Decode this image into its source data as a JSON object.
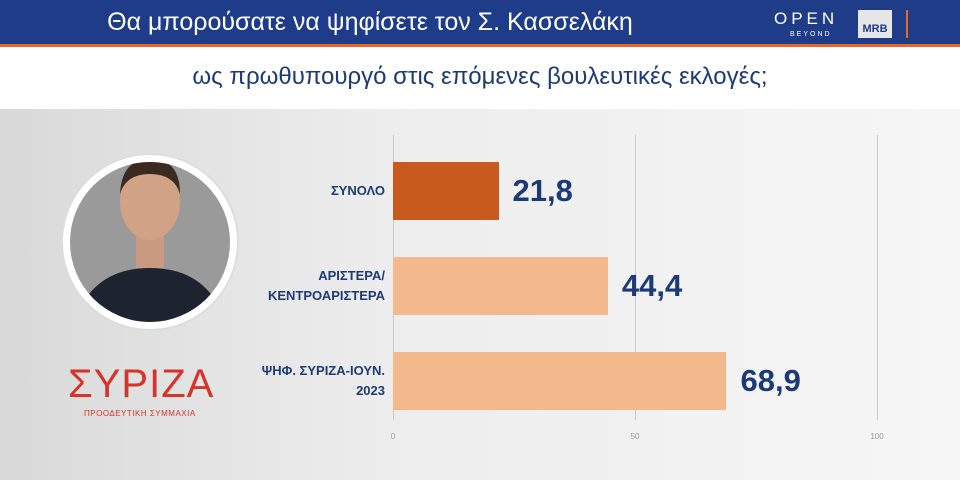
{
  "header": {
    "logo_open": "OPEN",
    "logo_beyond": "BEYOND",
    "logo_mrb": "MRB"
  },
  "party": {
    "name": "ΣΥΡΙΖΑ",
    "tagline": "ΠΡΟΟΔΕΥΤΙΚΗ ΣΥΜΜΑΧΙΑ"
  },
  "chart_data": {
    "type": "bar",
    "orientation": "horizontal",
    "title": "Θα μπορούσατε να ψηφίσετε τον Σ. Κασσελάκη",
    "subtitle": "ως πρωθυπουργό στις επόμενες βουλευτικές εκλογές;",
    "categories": [
      "ΣΥΝΟΛΟ",
      "ΑΡΙΣΤΕΡΑ/ ΚΕΝΤΡΟΑΡΙΣΤΕΡΑ",
      "ΨΗΦ. ΣΥΡΙΖΑ-ΙΟΥΝ. 2023"
    ],
    "values": [
      21.8,
      44.4,
      68.9
    ],
    "value_labels": [
      "21,8",
      "44,4",
      "68,9"
    ],
    "colors": [
      "#c75a1c",
      "#f4b88d",
      "#f4b88d"
    ],
    "xlim": [
      0,
      100
    ],
    "xticks": [
      0,
      50,
      100
    ],
    "grid": true
  }
}
